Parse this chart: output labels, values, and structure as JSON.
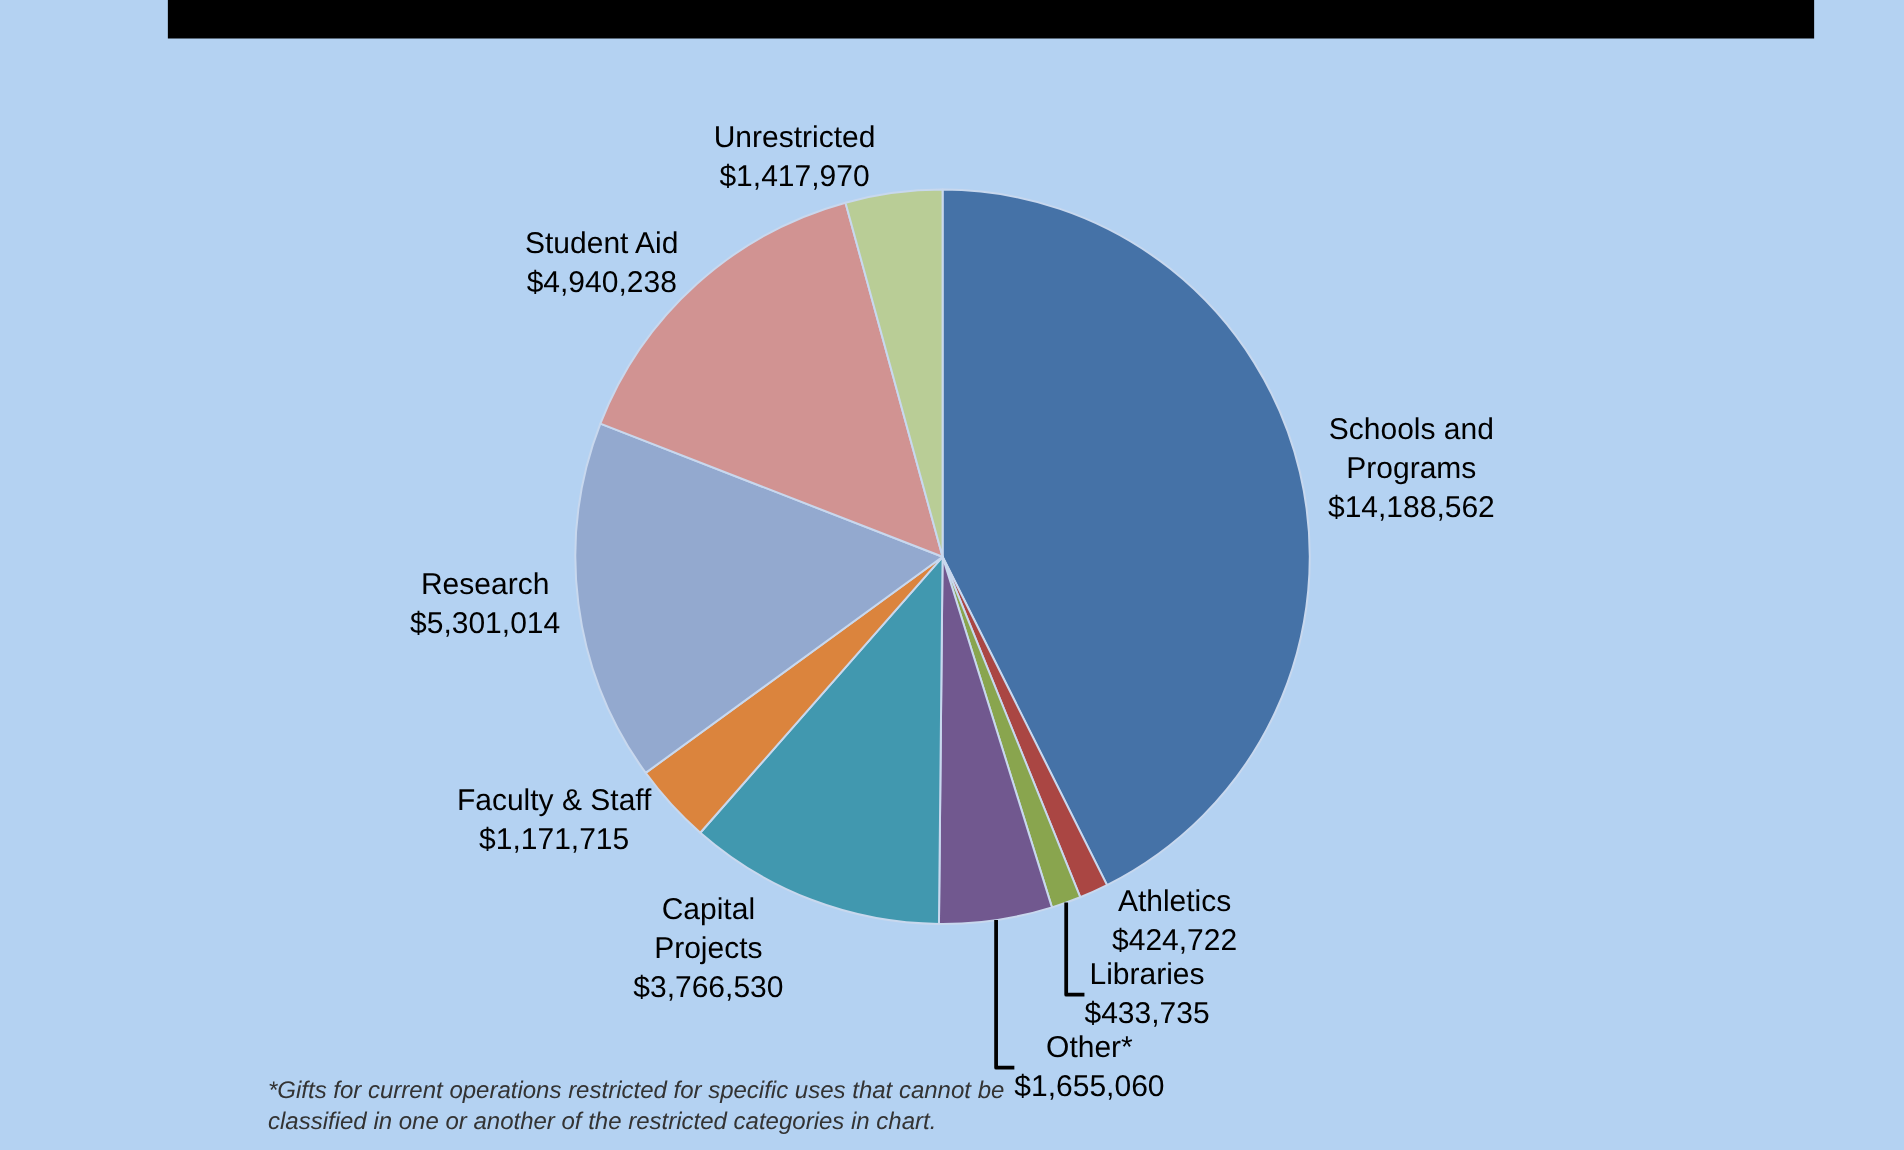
{
  "chart_data": {
    "type": "pie",
    "categories": [
      "Schools and\nPrograms",
      "Athletics",
      "Libraries",
      "Other*",
      "Capital\nProjects",
      "Faculty & Staff",
      "Research",
      "Student Aid",
      "Unrestricted"
    ],
    "values": [
      14188562,
      424722,
      433735,
      1655060,
      3766530,
      1171715,
      5301014,
      4940238,
      1417970
    ],
    "value_labels": [
      "$14,188,562",
      "$424,722",
      "$433,735",
      "$1,655,060",
      "$3,766,530",
      "$1,171,715",
      "$5,301,014",
      "$4,940,238",
      "$1,417,970"
    ],
    "colors": [
      "#4572a7",
      "#aa4643",
      "#89a54e",
      "#71588f",
      "#4198af",
      "#db843d",
      "#93a9cf",
      "#d19392",
      "#b9cd96"
    ],
    "legend": false,
    "annotations": [
      "*Gifts for current operations restricted for specific uses that cannot be\nclassified in one or another of the restricted categories in chart."
    ]
  }
}
